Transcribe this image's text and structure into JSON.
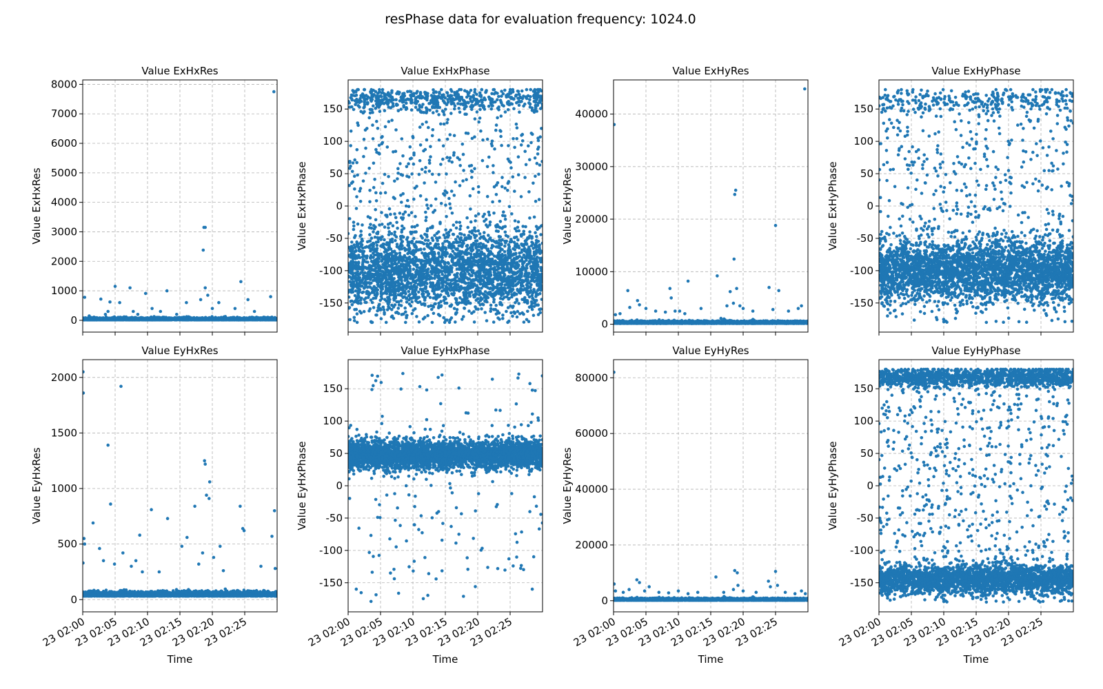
{
  "figure": {
    "title": "resPhase data for evaluation frequency: 1024.0",
    "point_color": "#1f77b4"
  },
  "chart_data": [
    {
      "type": "scatter",
      "title": "Value ExHxRes",
      "xlabel": "",
      "ylabel": "Value ExHxRes",
      "xlim": [
        "2000-01-23 02:00",
        "2000-01-23 02:30"
      ],
      "ylim": [
        -400,
        8150
      ],
      "yticks": [
        0,
        1000,
        2000,
        3000,
        4000,
        5000,
        6000,
        7000,
        8000
      ],
      "xticks": [
        "23 02:00",
        "23 02:05",
        "23 02:10",
        "23 02:15",
        "23 02:20",
        "23 02:25"
      ],
      "show_xticklabels": false,
      "grid": true,
      "band": {
        "center": 30,
        "spread": 80,
        "count": 3000
      },
      "outliers": [
        [
          0.3,
          780
        ],
        [
          1.0,
          150
        ],
        [
          2.8,
          720
        ],
        [
          3.5,
          200
        ],
        [
          3.9,
          300
        ],
        [
          4.2,
          620
        ],
        [
          5.0,
          1150
        ],
        [
          5.7,
          600
        ],
        [
          7.3,
          1100
        ],
        [
          7.8,
          300
        ],
        [
          8.5,
          200
        ],
        [
          9.7,
          910
        ],
        [
          10.7,
          400
        ],
        [
          12.0,
          300
        ],
        [
          13.0,
          1000
        ],
        [
          14.5,
          200
        ],
        [
          16.0,
          600
        ],
        [
          18.2,
          700
        ],
        [
          18.7,
          3150
        ],
        [
          18.9,
          3150
        ],
        [
          18.6,
          2380
        ],
        [
          18.9,
          1100
        ],
        [
          19.3,
          850
        ],
        [
          20.0,
          400
        ],
        [
          21.0,
          600
        ],
        [
          24.4,
          1310
        ],
        [
          25.5,
          700
        ],
        [
          23.5,
          400
        ],
        [
          26.5,
          300
        ],
        [
          29.0,
          800
        ],
        [
          29.5,
          7750
        ]
      ]
    },
    {
      "type": "scatter",
      "title": "Value ExHxPhase",
      "xlabel": "",
      "ylabel": "Value ExHxPhase",
      "xlim": [
        "2000-01-23 02:00",
        "2000-01-23 02:30"
      ],
      "ylim": [
        -195,
        195
      ],
      "yticks": [
        -150,
        -100,
        -50,
        0,
        50,
        100,
        150
      ],
      "xticks": [
        "23 02:00",
        "23 02:05",
        "23 02:10",
        "23 02:15",
        "23 02:20",
        "23 02:25"
      ],
      "show_xticklabels": false,
      "grid": true,
      "band": {
        "center": -100,
        "spread": 60,
        "count": 2600
      },
      "upper_band": {
        "center": 165,
        "spread": 15,
        "count": 500
      },
      "scatter_uniform": {
        "min": -180,
        "max": 180,
        "count": 700
      },
      "outliers": []
    },
    {
      "type": "scatter",
      "title": "Value ExHyRes",
      "xlabel": "",
      "ylabel": "Value ExHyRes",
      "xlim": [
        "2000-01-23 02:00",
        "2000-01-23 02:30"
      ],
      "ylim": [
        -1500,
        46500
      ],
      "yticks": [
        0,
        10000,
        20000,
        30000,
        40000
      ],
      "xticks": [
        "23 02:00",
        "23 02:05",
        "23 02:10",
        "23 02:15",
        "23 02:20",
        "23 02:25"
      ],
      "show_xticklabels": false,
      "grid": true,
      "band": {
        "center": 250,
        "spread": 500,
        "count": 3000
      },
      "outliers": [
        [
          0.1,
          38000
        ],
        [
          0.3,
          1800
        ],
        [
          1.0,
          2000
        ],
        [
          2.5,
          3200
        ],
        [
          2.2,
          6400
        ],
        [
          3.7,
          4500
        ],
        [
          4.0,
          3700
        ],
        [
          5.0,
          3000
        ],
        [
          6.5,
          2500
        ],
        [
          8.0,
          2300
        ],
        [
          8.7,
          6800
        ],
        [
          8.9,
          5000
        ],
        [
          9.5,
          2500
        ],
        [
          10.2,
          2500
        ],
        [
          11.0,
          2000
        ],
        [
          11.5,
          8200
        ],
        [
          13.5,
          3000
        ],
        [
          16.0,
          9200
        ],
        [
          17.5,
          3500
        ],
        [
          18.0,
          6200
        ],
        [
          18.5,
          4000
        ],
        [
          18.6,
          12400
        ],
        [
          18.7,
          24700
        ],
        [
          18.85,
          25500
        ],
        [
          19.0,
          6800
        ],
        [
          19.5,
          3500
        ],
        [
          20.0,
          3000
        ],
        [
          21.5,
          2500
        ],
        [
          24.0,
          7000
        ],
        [
          24.6,
          2800
        ],
        [
          25.0,
          18800
        ],
        [
          25.5,
          6400
        ],
        [
          27.0,
          2500
        ],
        [
          28.5,
          3000
        ],
        [
          29.0,
          3500
        ],
        [
          29.5,
          44800
        ]
      ]
    },
    {
      "type": "scatter",
      "title": "Value ExHyPhase",
      "xlabel": "",
      "ylabel": "Value ExHyPhase",
      "xlim": [
        "2000-01-23 02:00",
        "2000-01-23 02:30"
      ],
      "ylim": [
        -195,
        195
      ],
      "yticks": [
        -150,
        -100,
        -50,
        0,
        50,
        100,
        150
      ],
      "xticks": [
        "23 02:00",
        "23 02:05",
        "23 02:10",
        "23 02:15",
        "23 02:20",
        "23 02:25"
      ],
      "show_xticklabels": false,
      "grid": true,
      "band": {
        "center": -100,
        "spread": 45,
        "count": 3000
      },
      "upper_band": {
        "center": 165,
        "spread": 15,
        "count": 250
      },
      "scatter_uniform": {
        "min": -180,
        "max": 180,
        "count": 600
      },
      "outliers": []
    },
    {
      "type": "scatter",
      "title": "Value EyHxRes",
      "xlabel": "Time",
      "ylabel": "Value EyHxRes",
      "xlim": [
        "2000-01-23 02:00",
        "2000-01-23 02:30"
      ],
      "ylim": [
        -110,
        2160
      ],
      "yticks": [
        0,
        500,
        1000,
        1500,
        2000
      ],
      "xticks": [
        "23 02:00",
        "23 02:05",
        "23 02:10",
        "23 02:15",
        "23 02:20",
        "23 02:25"
      ],
      "show_xticklabels": true,
      "grid": true,
      "band": {
        "center": 40,
        "spread": 45,
        "count": 3200
      },
      "outliers": [
        [
          0.05,
          2050
        ],
        [
          0.1,
          1860
        ],
        [
          0.2,
          550
        ],
        [
          0.3,
          500
        ],
        [
          0.05,
          330
        ],
        [
          1.6,
          690
        ],
        [
          2.6,
          460
        ],
        [
          3.2,
          350
        ],
        [
          3.9,
          1390
        ],
        [
          4.3,
          860
        ],
        [
          4.9,
          320
        ],
        [
          5.9,
          1920
        ],
        [
          6.2,
          420
        ],
        [
          7.5,
          300
        ],
        [
          8.2,
          350
        ],
        [
          8.8,
          580
        ],
        [
          9.2,
          250
        ],
        [
          10.6,
          810
        ],
        [
          11.8,
          250
        ],
        [
          13.1,
          730
        ],
        [
          15.3,
          480
        ],
        [
          16.1,
          560
        ],
        [
          17.3,
          840
        ],
        [
          17.9,
          320
        ],
        [
          18.5,
          420
        ],
        [
          18.8,
          1250
        ],
        [
          18.9,
          1220
        ],
        [
          19.1,
          940
        ],
        [
          19.6,
          1060
        ],
        [
          19.5,
          910
        ],
        [
          20.2,
          380
        ],
        [
          21.2,
          480
        ],
        [
          21.7,
          260
        ],
        [
          24.3,
          840
        ],
        [
          24.7,
          640
        ],
        [
          24.9,
          620
        ],
        [
          27.5,
          300
        ],
        [
          29.2,
          570
        ],
        [
          29.6,
          800
        ],
        [
          29.7,
          280
        ]
      ]
    },
    {
      "type": "scatter",
      "title": "Value EyHxPhase",
      "xlabel": "Time",
      "ylabel": "Value EyHxPhase",
      "xlim": [
        "2000-01-23 02:00",
        "2000-01-23 02:30"
      ],
      "ylim": [
        -195,
        195
      ],
      "yticks": [
        -150,
        -100,
        -50,
        0,
        50,
        100,
        150
      ],
      "xticks": [
        "23 02:00",
        "23 02:05",
        "23 02:10",
        "23 02:15",
        "23 02:20",
        "23 02:25"
      ],
      "show_xticklabels": true,
      "grid": true,
      "band": {
        "center": 48,
        "spread": 22,
        "count": 3600
      },
      "scatter_uniform": {
        "min": -180,
        "max": 180,
        "count": 170
      },
      "outliers": []
    },
    {
      "type": "scatter",
      "title": "Value EyHyRes",
      "xlabel": "Time",
      "ylabel": "Value EyHyRes",
      "xlim": [
        "2000-01-23 02:00",
        "2000-01-23 02:30"
      ],
      "ylim": [
        -4000,
        86500
      ],
      "yticks": [
        0,
        20000,
        40000,
        60000,
        80000
      ],
      "xticks": [
        "23 02:00",
        "23 02:05",
        "23 02:10",
        "23 02:15",
        "23 02:20",
        "23 02:25"
      ],
      "show_xticklabels": true,
      "grid": true,
      "band": {
        "center": 300,
        "spread": 800,
        "count": 3000
      },
      "outliers": [
        [
          0.05,
          82000
        ],
        [
          0.1,
          6000
        ],
        [
          0.3,
          3500
        ],
        [
          1.5,
          3000
        ],
        [
          2.4,
          4000
        ],
        [
          3.6,
          7500
        ],
        [
          4.0,
          6500
        ],
        [
          4.8,
          3500
        ],
        [
          5.5,
          5000
        ],
        [
          7.0,
          3000
        ],
        [
          8.5,
          2800
        ],
        [
          10.0,
          3500
        ],
        [
          11.5,
          2500
        ],
        [
          13.0,
          3000
        ],
        [
          15.8,
          8500
        ],
        [
          17.0,
          3000
        ],
        [
          18.5,
          4000
        ],
        [
          18.7,
          10800
        ],
        [
          19.1,
          10000
        ],
        [
          19.2,
          5500
        ],
        [
          20.0,
          3500
        ],
        [
          22.0,
          3000
        ],
        [
          23.9,
          7000
        ],
        [
          24.2,
          5000
        ],
        [
          25.0,
          10500
        ],
        [
          25.3,
          5500
        ],
        [
          26.5,
          3000
        ],
        [
          28.0,
          2500
        ],
        [
          29.0,
          3500
        ],
        [
          29.6,
          2500
        ]
      ]
    },
    {
      "type": "scatter",
      "title": "Value EyHyPhase",
      "xlabel": "Time",
      "ylabel": "Value EyHyPhase",
      "xlim": [
        "2000-01-23 02:00",
        "2000-01-23 02:30"
      ],
      "ylim": [
        -195,
        195
      ],
      "yticks": [
        -150,
        -100,
        -50,
        0,
        50,
        100,
        150
      ],
      "xticks": [
        "23 02:00",
        "23 02:05",
        "23 02:10",
        "23 02:15",
        "23 02:20",
        "23 02:25"
      ],
      "show_xticklabels": true,
      "grid": true,
      "band": {
        "center": -145,
        "spread": 22,
        "count": 2400
      },
      "upper_band": {
        "center": 168,
        "spread": 12,
        "count": 1200
      },
      "scatter_uniform": {
        "min": -180,
        "max": 180,
        "count": 700
      },
      "outliers": [
        [
          0.8,
          125
        ],
        [
          1.2,
          130
        ],
        [
          1.6,
          115
        ],
        [
          2.0,
          140
        ],
        [
          1.0,
          110
        ],
        [
          0.5,
          120
        ]
      ]
    }
  ]
}
